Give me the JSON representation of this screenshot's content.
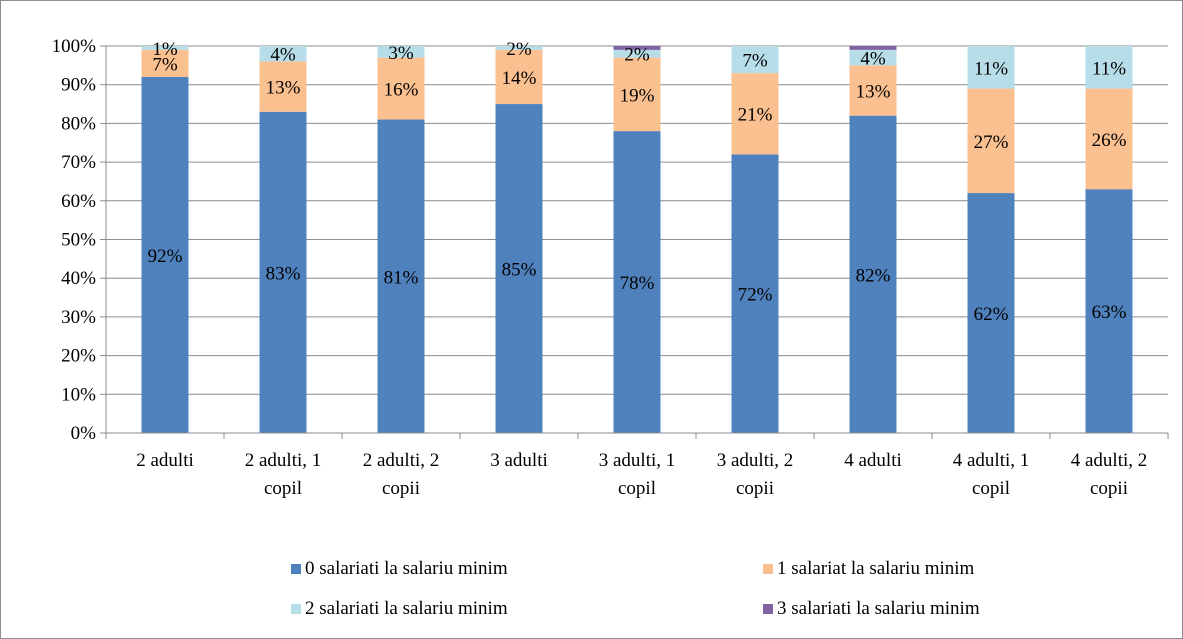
{
  "chart_data": {
    "type": "bar",
    "stacked": true,
    "categories": [
      [
        "2 adulti"
      ],
      [
        "2 adulti, 1",
        "copil"
      ],
      [
        "2 adulti, 2",
        "copii"
      ],
      [
        "3 adulti"
      ],
      [
        "3 adulti, 1",
        "copil"
      ],
      [
        "3 adulti, 2",
        "copii"
      ],
      [
        "4 adulti"
      ],
      [
        "4 adulti, 1",
        "copil"
      ],
      [
        "4 adulti, 2",
        "copii"
      ]
    ],
    "series": [
      {
        "name": "0 salariati la salariu minim",
        "color": "#4F81BD",
        "values": [
          92,
          83,
          81,
          85,
          78,
          72,
          82,
          62,
          63
        ],
        "labels": [
          "92%",
          "83%",
          "81%",
          "85%",
          "78%",
          "72%",
          "82%",
          "62%",
          "63%"
        ]
      },
      {
        "name": "1 salariat la salariu minim",
        "color": "#FAC090",
        "values": [
          7,
          13,
          16,
          14,
          19,
          21,
          13,
          27,
          26
        ],
        "labels": [
          "7%",
          "13%",
          "16%",
          "14%",
          "19%",
          "21%",
          "13%",
          "27%",
          "26%"
        ]
      },
      {
        "name": "2 salariati la salariu minim",
        "color": "#B7DEE8",
        "values": [
          1,
          4,
          3,
          2,
          2,
          7,
          4,
          11,
          11
        ],
        "labels": [
          "1%",
          "4%",
          "3%",
          "2%",
          "2%",
          "7%",
          "4%",
          "11%",
          "11%"
        ]
      },
      {
        "name": "3 salariati la salariu minim",
        "color": "#8064A2",
        "values": [
          0,
          0,
          0,
          0,
          1,
          0,
          1,
          0,
          0
        ],
        "labels": [
          "",
          "",
          "",
          "",
          "",
          "",
          "",
          "",
          ""
        ]
      }
    ],
    "yticks": [
      "0%",
      "10%",
      "20%",
      "30%",
      "40%",
      "50%",
      "60%",
      "70%",
      "80%",
      "90%",
      "100%"
    ],
    "ylim": [
      0,
      100
    ],
    "grid": true,
    "legend_position": "bottom"
  }
}
